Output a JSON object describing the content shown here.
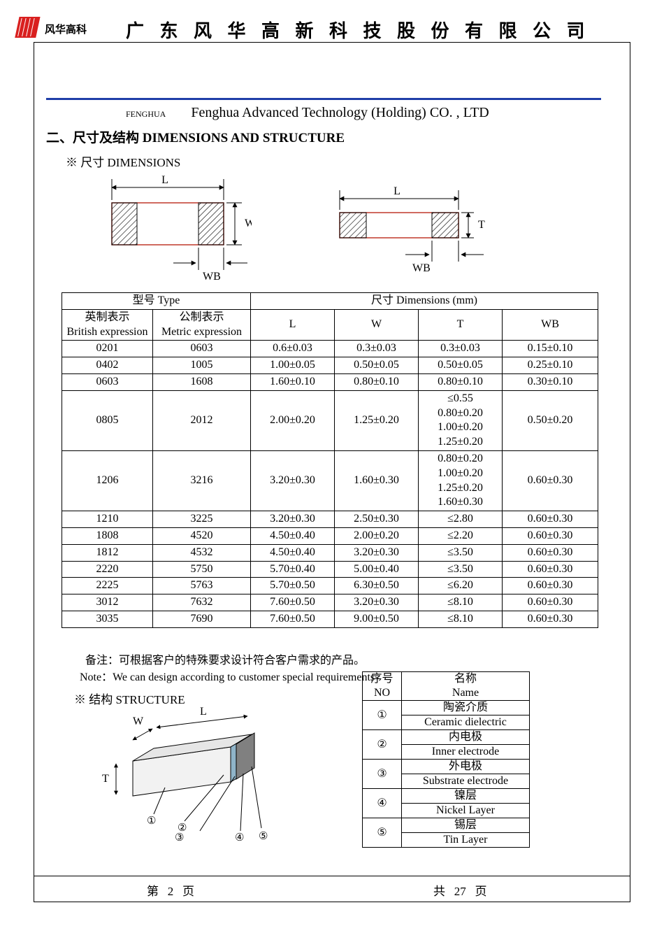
{
  "header": {
    "logo_text_cn": "风华高科",
    "company_cn": "广 东 风 华 高 新 科 技 股 份 有 限 公 司",
    "brand_small": "FENGHUA",
    "company_en": "Fenghua Advanced Technology (Holding) CO. , LTD",
    "blue_rule_color": "#1f3ea8",
    "logo_red": "#d9201f"
  },
  "section": {
    "heading": "二、尺寸及结构   DIMENSIONS AND STRUCTURE",
    "dim_sub": "※ 尺寸 DIMENSIONS",
    "struct_sub": "※ 结构 STRUCTURE"
  },
  "diagram_labels": {
    "L": "L",
    "W": "W",
    "WB": "WB",
    "T": "T"
  },
  "dim_table": {
    "head_type": "型号 Type",
    "head_dims": "尺寸     Dimensions     (mm)",
    "col_brit_cn": "英制表示",
    "col_brit_en": "British expression",
    "col_met_cn": "公制表示",
    "col_met_en": "Metric expression",
    "col_L": "L",
    "col_W": "W",
    "col_T": "T",
    "col_WB": "WB",
    "rows": [
      {
        "b": "0201",
        "m": "0603",
        "L": "0.6±0.03",
        "W": "0.3±0.03",
        "T": "0.3±0.03",
        "WB": "0.15±0.10"
      },
      {
        "b": "0402",
        "m": "1005",
        "L": "1.00±0.05",
        "W": "0.50±0.05",
        "T": "0.50±0.05",
        "WB": "0.25±0.10"
      },
      {
        "b": "0603",
        "m": "1608",
        "L": "1.60±0.10",
        "W": "0.80±0.10",
        "T": "0.80±0.10",
        "WB": "0.30±0.10"
      },
      {
        "b": "0805",
        "m": "2012",
        "L": "2.00±0.20",
        "W": "1.25±0.20",
        "T": "≤0.55\n0.80±0.20\n1.00±0.20\n1.25±0.20",
        "WB": "0.50±0.20"
      },
      {
        "b": "1206",
        "m": "3216",
        "L": "3.20±0.30",
        "W": "1.60±0.30",
        "T": "0.80±0.20\n1.00±0.20\n1.25±0.20\n1.60±0.30",
        "WB": "0.60±0.30"
      },
      {
        "b": "1210",
        "m": "3225",
        "L": "3.20±0.30",
        "W": "2.50±0.30",
        "T": "≤2.80",
        "WB": "0.60±0.30"
      },
      {
        "b": "1808",
        "m": "4520",
        "L": "4.50±0.40",
        "W": "2.00±0.20",
        "T": "≤2.20",
        "WB": "0.60±0.30"
      },
      {
        "b": "1812",
        "m": "4532",
        "L": "4.50±0.40",
        "W": "3.20±0.30",
        "T": "≤3.50",
        "WB": "0.60±0.30"
      },
      {
        "b": "2220",
        "m": "5750",
        "L": "5.70±0.40",
        "W": "5.00±0.40",
        "T": "≤3.50",
        "WB": "0.60±0.30"
      },
      {
        "b": "2225",
        "m": "5763",
        "L": "5.70±0.50",
        "W": "6.30±0.50",
        "T": "≤6.20",
        "WB": "0.60±0.30"
      },
      {
        "b": "3012",
        "m": "7632",
        "L": "7.60±0.50",
        "W": "3.20±0.30",
        "T": "≤8.10",
        "WB": "0.60±0.30"
      },
      {
        "b": "3035",
        "m": "7690",
        "L": "7.60±0.50",
        "W": "9.00±0.50",
        "T": "≤8.10",
        "WB": "0.60±0.30"
      }
    ]
  },
  "notes": {
    "cn": "备注：可根据客户的特殊要求设计符合客户需求的产品。",
    "en": "Note：We can design according to customer special requirements"
  },
  "structure_table": {
    "col_no_cn": "序号",
    "col_no_en": "NO",
    "col_name_cn": "名称",
    "col_name_en": "Name",
    "rows": [
      {
        "no": "①",
        "cn": "陶瓷介质",
        "en": "Ceramic   dielectric"
      },
      {
        "no": "②",
        "cn": "内电极",
        "en": "Inner   electrode"
      },
      {
        "no": "③",
        "cn": "外电极",
        "en": "Substrate   electrode"
      },
      {
        "no": "④",
        "cn": "镍层",
        "en": "Nickel Layer"
      },
      {
        "no": "⑤",
        "cn": "锡层",
        "en": "Tin Layer"
      }
    ]
  },
  "structure_diagram": {
    "labels": {
      "W": "W",
      "L": "L",
      "T": "T",
      "n1": "①",
      "n2": "②",
      "n3": "③",
      "n4": "④",
      "n5": "⑤"
    },
    "colors": {
      "body": "#f2f2f2",
      "edge": "#000000",
      "inner": "#808080",
      "subst": "#404040",
      "nickel": "#8fb4c9",
      "tin": "#d0d0d0",
      "arrow": "#000000"
    }
  },
  "footer": {
    "left_pre": "第",
    "page": "2",
    "left_post": "页",
    "right_pre": "共",
    "total": "27",
    "right_post": "页"
  }
}
